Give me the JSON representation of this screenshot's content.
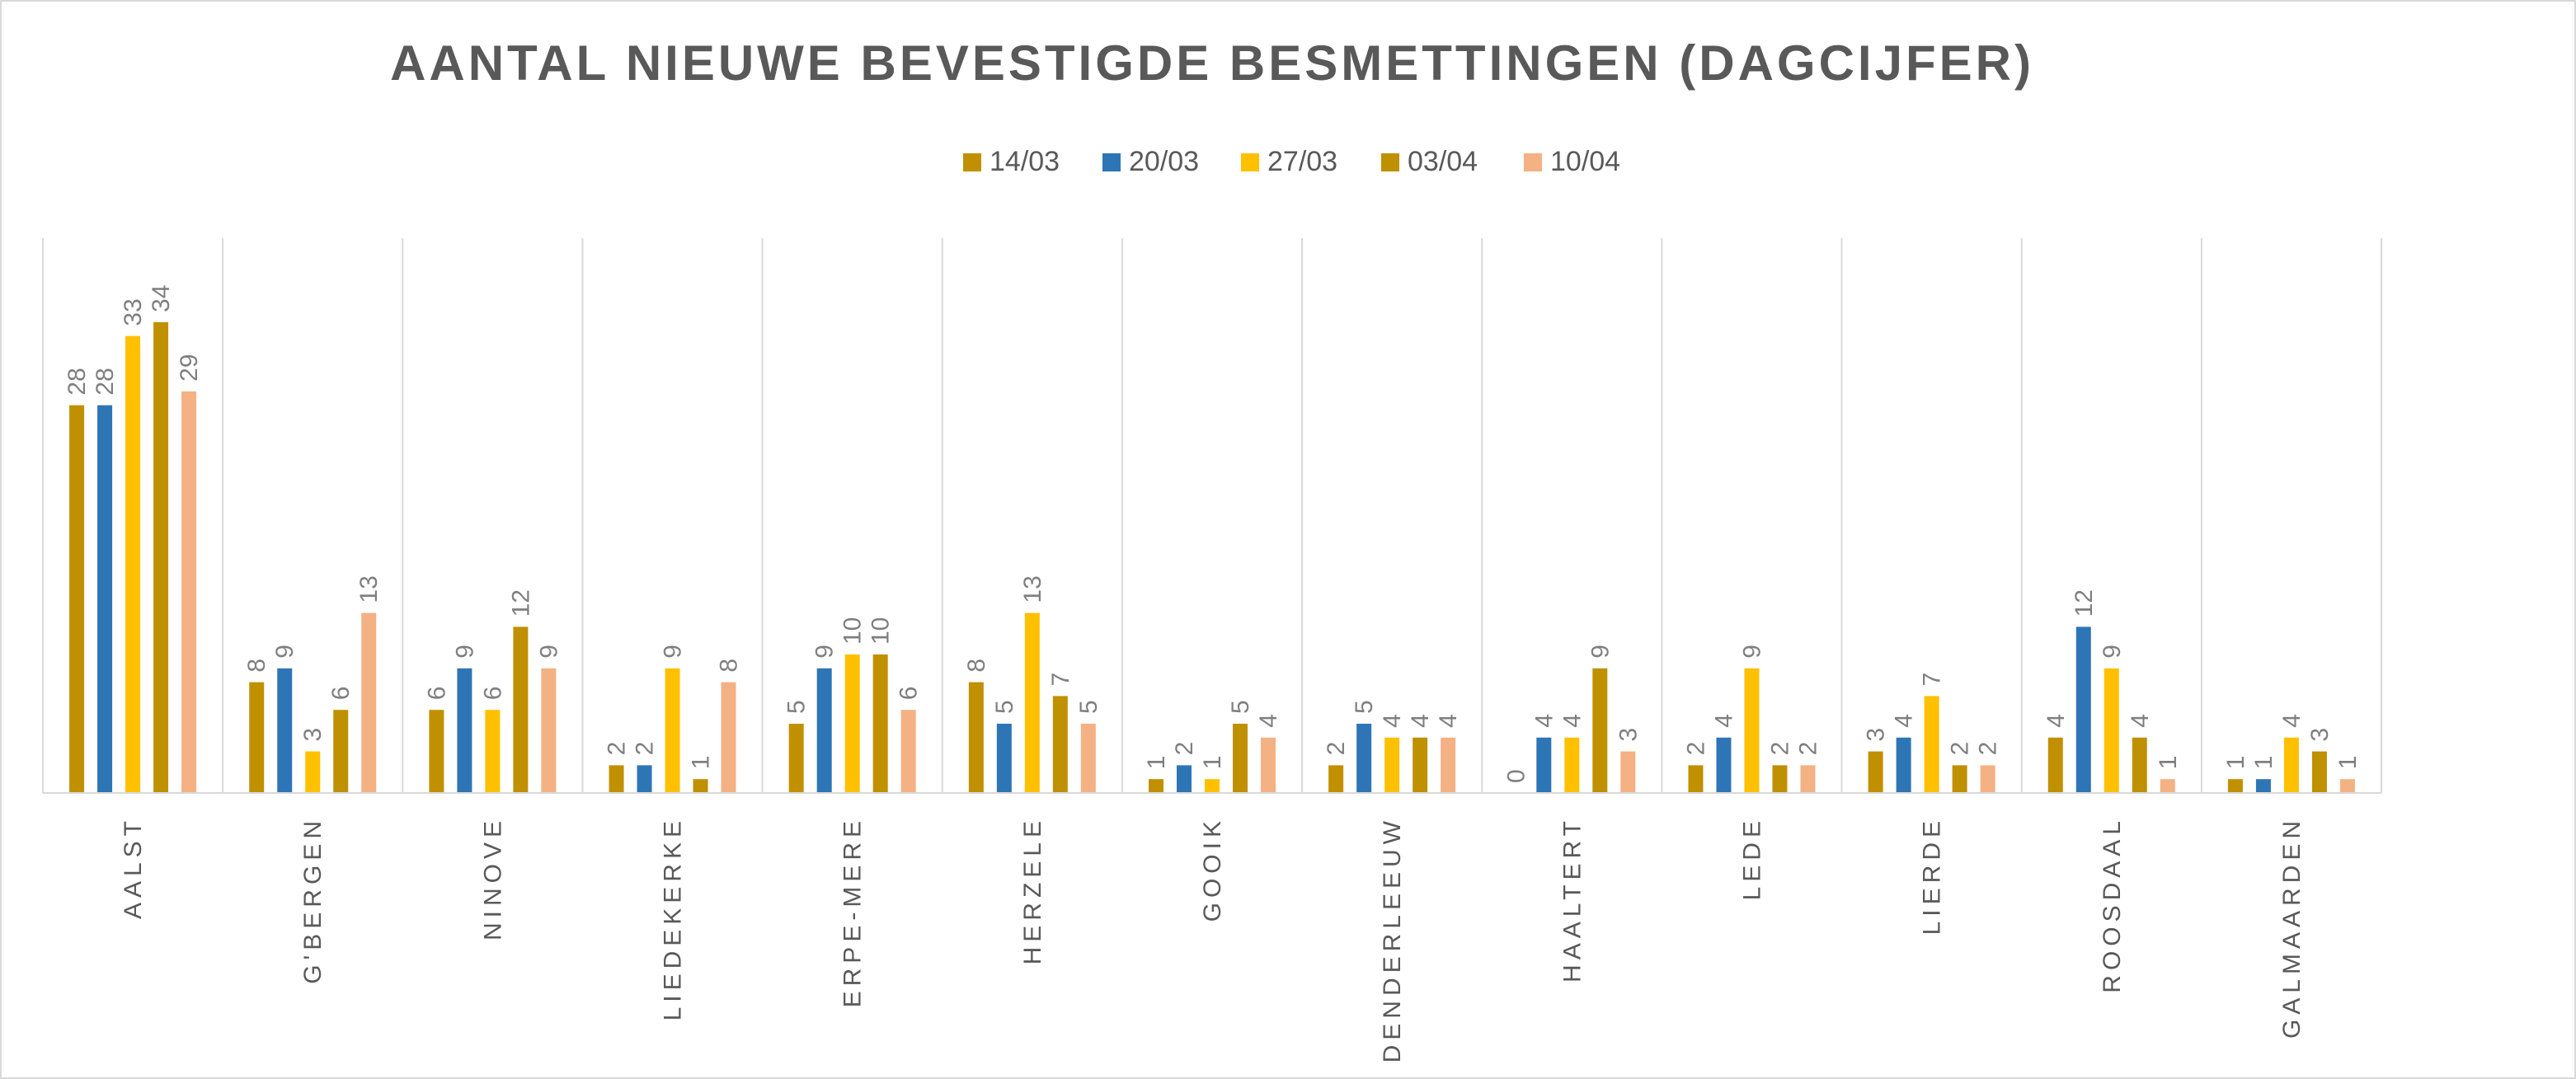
{
  "chart_data": {
    "type": "bar",
    "title": "AANTAL NIEUWE BEVESTIGDE BESMETTINGEN (DAGCIJFER)",
    "xlabel": "",
    "ylabel": "",
    "ylim": [
      0,
      40
    ],
    "grid": "vertical-category-dividers",
    "legend_position": "top",
    "categories": [
      "AALST",
      "G'BERGEN",
      "NINOVE",
      "LIEDEKERKE",
      "ERPE-MERE",
      "HERZELE",
      "GOOIK",
      "DENDERLEEUW",
      "HAALTERT",
      "LEDE",
      "LIERDE",
      "ROOSDAAL",
      "GALMAARDEN"
    ],
    "series": [
      {
        "name": "14/03",
        "color": "#c09000",
        "values": [
          28,
          8,
          6,
          2,
          5,
          8,
          1,
          2,
          0,
          2,
          3,
          4,
          1
        ]
      },
      {
        "name": "20/03",
        "color": "#2e75b6",
        "values": [
          28,
          9,
          9,
          2,
          9,
          5,
          2,
          5,
          4,
          4,
          4,
          12,
          1
        ]
      },
      {
        "name": "27/03",
        "color": "#ffc000",
        "values": [
          33,
          3,
          6,
          9,
          10,
          13,
          1,
          4,
          4,
          9,
          7,
          9,
          4
        ]
      },
      {
        "name": "03/04",
        "color": "#bf9000",
        "values": [
          34,
          6,
          12,
          1,
          10,
          7,
          5,
          4,
          9,
          2,
          2,
          4,
          3
        ]
      },
      {
        "name": "10/04",
        "color": "#f4b183",
        "values": [
          29,
          13,
          9,
          8,
          6,
          5,
          4,
          4,
          3,
          2,
          2,
          1,
          1
        ]
      }
    ]
  }
}
